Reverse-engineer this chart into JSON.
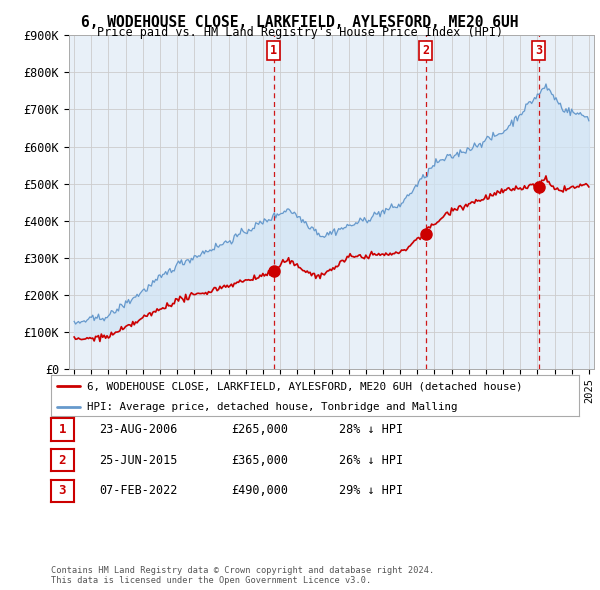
{
  "title": "6, WODEHOUSE CLOSE, LARKFIELD, AYLESFORD, ME20 6UH",
  "subtitle": "Price paid vs. HM Land Registry's House Price Index (HPI)",
  "ylim": [
    0,
    900000
  ],
  "yticks": [
    0,
    100000,
    200000,
    300000,
    400000,
    500000,
    600000,
    700000,
    800000,
    900000
  ],
  "ytick_labels": [
    "£0",
    "£100K",
    "£200K",
    "£300K",
    "£400K",
    "£500K",
    "£600K",
    "£700K",
    "£800K",
    "£900K"
  ],
  "sale_dates": [
    "23-AUG-2006",
    "25-JUN-2015",
    "07-FEB-2022"
  ],
  "sale_prices": [
    265000,
    365000,
    490000
  ],
  "sale_pct_hpi": [
    "28%",
    "26%",
    "29%"
  ],
  "sale_years_float": [
    2006.64,
    2015.48,
    2022.09
  ],
  "legend_red": "6, WODEHOUSE CLOSE, LARKFIELD, AYLESFORD, ME20 6UH (detached house)",
  "legend_blue": "HPI: Average price, detached house, Tonbridge and Malling",
  "footer1": "Contains HM Land Registry data © Crown copyright and database right 2024.",
  "footer2": "This data is licensed under the Open Government Licence v3.0.",
  "red_color": "#cc0000",
  "blue_color": "#6699cc",
  "fill_color": "#ddeeff",
  "background_color": "#ffffff",
  "grid_color": "#cccccc",
  "xlim_left": 1994.7,
  "xlim_right": 2025.3
}
